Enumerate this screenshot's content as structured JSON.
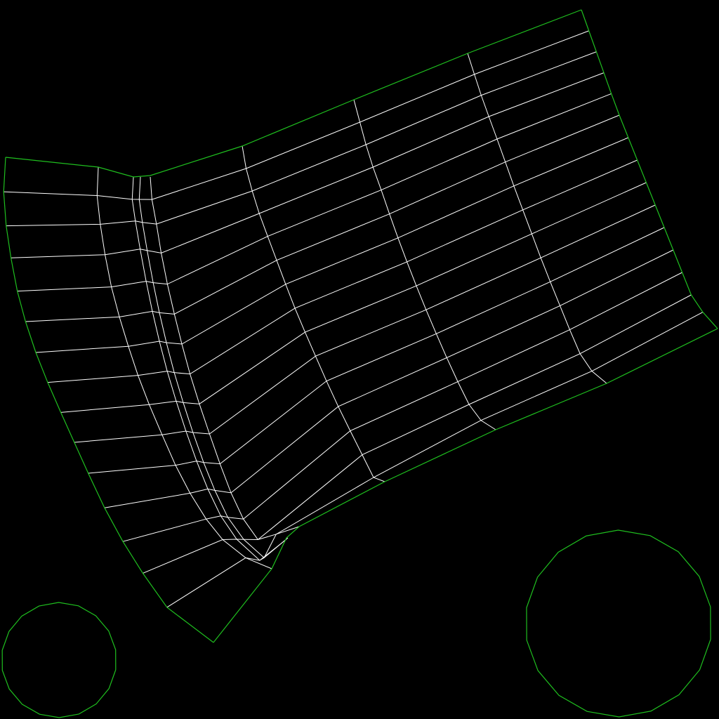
{
  "colors": {
    "background": "#000000",
    "boundary": "#1fbf1f",
    "mesh": "#ffffff"
  },
  "diagram": {
    "type": "structured-mesh",
    "mesh_rows": 15,
    "circle_count": 2,
    "circle_polygon_sides": 18
  }
}
